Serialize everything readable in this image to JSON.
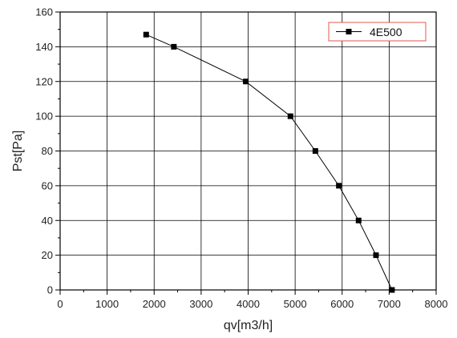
{
  "chart_data": {
    "type": "line",
    "xlabel": "qv[m3/h]",
    "ylabel": "Pst[Pa]",
    "xlim": [
      0,
      8000
    ],
    "ylim": [
      0,
      160
    ],
    "xticks": [
      0,
      1000,
      2000,
      3000,
      4000,
      5000,
      6000,
      7000,
      8000
    ],
    "yticks": [
      0,
      20,
      40,
      60,
      80,
      100,
      120,
      140,
      160
    ],
    "grid": true,
    "legend_position": "top-right",
    "series": [
      {
        "name": "4E500",
        "marker": "square",
        "color": "#000000",
        "x": [
          1830,
          2420,
          3950,
          4900,
          5430,
          5930,
          6350,
          6720,
          7060
        ],
        "y": [
          147,
          140,
          120,
          100,
          80,
          60,
          40,
          20,
          0
        ]
      }
    ]
  },
  "colors": {
    "legend_frame": "#e05a4e",
    "line": "#000000",
    "grid": "#000000"
  }
}
